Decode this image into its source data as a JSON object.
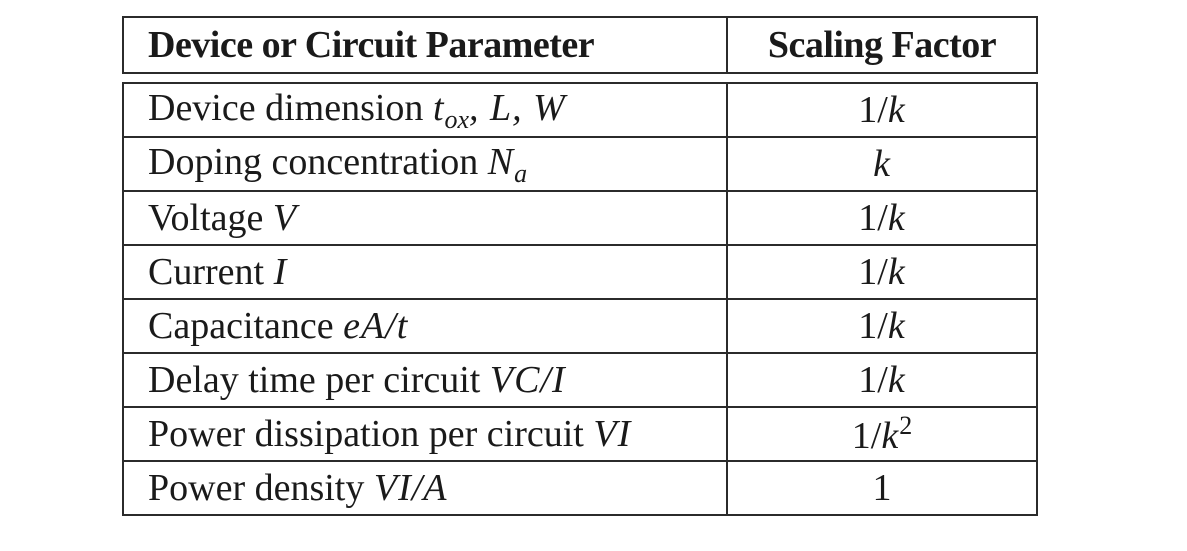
{
  "header": {
    "parameter": "Device or Circuit Parameter",
    "factor": "Scaling Factor"
  },
  "rows": [
    {
      "label": "Device dimension ",
      "math": "t",
      "math_sub": "ox",
      "math_after": ", L, W",
      "factor": "1/",
      "factor_var": "k"
    },
    {
      "label": "Doping concentration ",
      "math": "N",
      "math_sub": "a",
      "factor_var": "k"
    },
    {
      "label": "Voltage ",
      "math": "V",
      "factor": "1/",
      "factor_var": "k"
    },
    {
      "label": "Current ",
      "math": "I",
      "factor": "1/",
      "factor_var": "k"
    },
    {
      "label": "Capacitance ",
      "math": "eA/t",
      "factor": "1/",
      "factor_var": "k"
    },
    {
      "label": "Delay time per circuit ",
      "math": "VC/I",
      "factor": "1/",
      "factor_var": "k"
    },
    {
      "label": "Power dissipation per circuit ",
      "math": "VI",
      "factor": "1/",
      "factor_var": "k",
      "factor_sup": "2"
    },
    {
      "label": "Power density ",
      "math": "VI/A",
      "factor": "1"
    }
  ]
}
